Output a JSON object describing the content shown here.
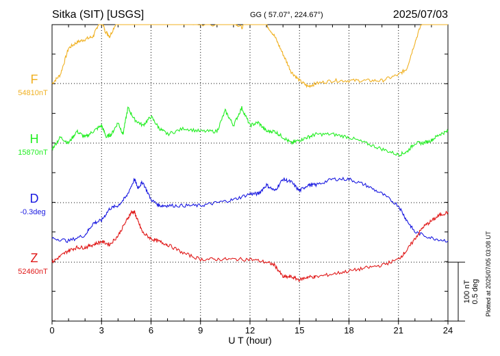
{
  "header": {
    "station": "Sitka (SIT)  [USGS]",
    "coords": "GG ( 57.07°, 224.67°)",
    "date": "2025/07/03"
  },
  "footer": {
    "plotted": "Plotted at 2025/07/05 03:08 UT"
  },
  "scale": {
    "nt": "100 nT",
    "deg": "0.5 deg"
  },
  "chart_data": {
    "type": "line",
    "xlabel": "U T (hour)",
    "xlim": [
      0,
      24
    ],
    "x_ticks": [
      "0",
      "3",
      "6",
      "9",
      "12",
      "15",
      "18",
      "21",
      "24"
    ],
    "grid": "dotted",
    "series": [
      {
        "name": "F",
        "baseline_label": "54810nT",
        "color": "#f0b020",
        "x": [
          0,
          0.5,
          1,
          1.5,
          2,
          2.5,
          2.8,
          3,
          3.2,
          3.5,
          4,
          4.5,
          4.8,
          5,
          5.2,
          5.5,
          6,
          6.5,
          7,
          8,
          9,
          10,
          10.5,
          11,
          11.5,
          12,
          13,
          13.5,
          14,
          14.5,
          15,
          15.5,
          16,
          17,
          18,
          19,
          20,
          21,
          21.5,
          22,
          22.5,
          23,
          23.5,
          24
        ],
        "y": [
          0,
          15,
          60,
          70,
          75,
          80,
          100,
          110,
          90,
          80,
          110,
          150,
          180,
          215,
          180,
          160,
          145,
          125,
          115,
          105,
          100,
          100,
          115,
          105,
          95,
          110,
          100,
          80,
          50,
          20,
          5,
          -5,
          0,
          5,
          5,
          5,
          5,
          15,
          25,
          70,
          110,
          135,
          150,
          170
        ]
      },
      {
        "name": "H",
        "baseline_label": "15870nT",
        "color": "#22ee22",
        "x": [
          0,
          0.5,
          1,
          1.5,
          2,
          2.5,
          3,
          3.3,
          3.6,
          4,
          4.3,
          4.6,
          5,
          5.5,
          6,
          6.5,
          7,
          8,
          9,
          10,
          10.5,
          11,
          11.5,
          12,
          12.5,
          13,
          13.5,
          14,
          14.5,
          15,
          15.5,
          16,
          17,
          18,
          19,
          20,
          21,
          21.5,
          22,
          22.5,
          23,
          23.5,
          24
        ],
        "y": [
          -10,
          10,
          0,
          20,
          10,
          20,
          30,
          10,
          15,
          35,
          15,
          60,
          40,
          30,
          45,
          25,
          15,
          25,
          20,
          20,
          55,
          30,
          60,
          30,
          35,
          20,
          20,
          10,
          0,
          5,
          10,
          15,
          15,
          10,
          0,
          -10,
          -20,
          -15,
          0,
          0,
          5,
          15,
          20
        ]
      },
      {
        "name": "D",
        "baseline_label": "-0.3deg",
        "color": "#1818e0",
        "x": [
          0,
          1,
          2,
          2.5,
          3,
          3.5,
          4,
          4.5,
          5,
          5.2,
          5.5,
          6,
          6.5,
          7,
          8,
          9,
          10,
          11,
          12,
          12.5,
          13,
          13.5,
          14,
          14.5,
          15,
          15.5,
          16,
          17,
          18,
          19,
          20,
          21,
          21.5,
          22,
          23,
          24
        ],
        "y": [
          -60,
          -65,
          -55,
          -35,
          -30,
          -10,
          -5,
          10,
          40,
          25,
          35,
          5,
          -5,
          -5,
          -5,
          -5,
          0,
          5,
          15,
          15,
          30,
          20,
          40,
          35,
          20,
          30,
          30,
          40,
          40,
          30,
          15,
          -5,
          -30,
          -50,
          -60,
          -65
        ]
      },
      {
        "name": "Z",
        "baseline_label": "52460nT",
        "color": "#e01818",
        "x": [
          0,
          0.5,
          1,
          1.5,
          2,
          2.5,
          3,
          3.5,
          4,
          4.5,
          4.8,
          5,
          5.2,
          5.5,
          6,
          6.5,
          7,
          8,
          9,
          10,
          11,
          12,
          13,
          13.5,
          14,
          14.5,
          15,
          15.5,
          16,
          17,
          18,
          19,
          20,
          21,
          21.5,
          22,
          22.5,
          23,
          23.5,
          24
        ],
        "y": [
          0,
          10,
          20,
          25,
          25,
          30,
          35,
          30,
          45,
          70,
          85,
          85,
          70,
          50,
          40,
          35,
          30,
          15,
          5,
          5,
          5,
          5,
          0,
          -5,
          -25,
          -25,
          -30,
          -25,
          -25,
          -20,
          -15,
          -10,
          -5,
          5,
          20,
          40,
          60,
          70,
          80,
          85
        ]
      }
    ]
  }
}
